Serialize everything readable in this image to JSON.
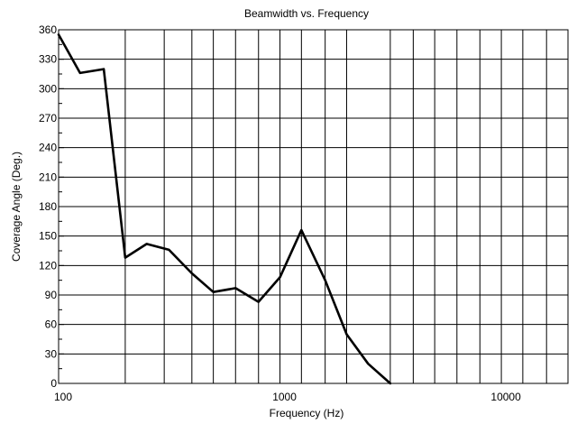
{
  "chart_data": {
    "type": "line",
    "title": "Beamwidth vs. Frequency",
    "xlabel": "Frequency (Hz)",
    "ylabel": "Coverage Angle (Deg.)",
    "xscale": "log",
    "xlim": [
      100,
      20000
    ],
    "ylim": [
      0,
      360
    ],
    "x_major_ticks": [
      100,
      1000,
      10000
    ],
    "x_tick_labels": [
      "100",
      "1000",
      "10000"
    ],
    "x_grid_lines": [
      200,
      300,
      400,
      500,
      630,
      800,
      1000,
      1250,
      1600,
      2000,
      3150,
      4000,
      5000,
      6300,
      8000,
      10000,
      12500,
      16000
    ],
    "y_ticks": [
      0,
      30,
      60,
      90,
      120,
      150,
      180,
      210,
      240,
      270,
      300,
      330,
      360
    ],
    "y_tick_labels": [
      "0",
      "30",
      "60",
      "90",
      "120",
      "150",
      "180",
      "210",
      "240",
      "270",
      "300",
      "330",
      "360"
    ],
    "y_minor_ticks": [
      15,
      45,
      75,
      105,
      135,
      165,
      195,
      225,
      255,
      285,
      315,
      345
    ],
    "y_grid_lines": [
      30,
      60,
      90,
      120,
      150,
      180,
      210,
      240,
      270,
      300,
      330
    ],
    "grid": true,
    "legend": "none",
    "series": [
      {
        "x": [
          100,
          125,
          160,
          200,
          250,
          315,
          400,
          500,
          630,
          800,
          1000,
          1250,
          1600,
          2000,
          2500,
          3150,
          4000,
          5000,
          6300
        ],
        "y": [
          355,
          316,
          320,
          128,
          142,
          136,
          112,
          93,
          97,
          83,
          108,
          156,
          105,
          50,
          20,
          0,
          null,
          null,
          null
        ]
      }
    ]
  }
}
